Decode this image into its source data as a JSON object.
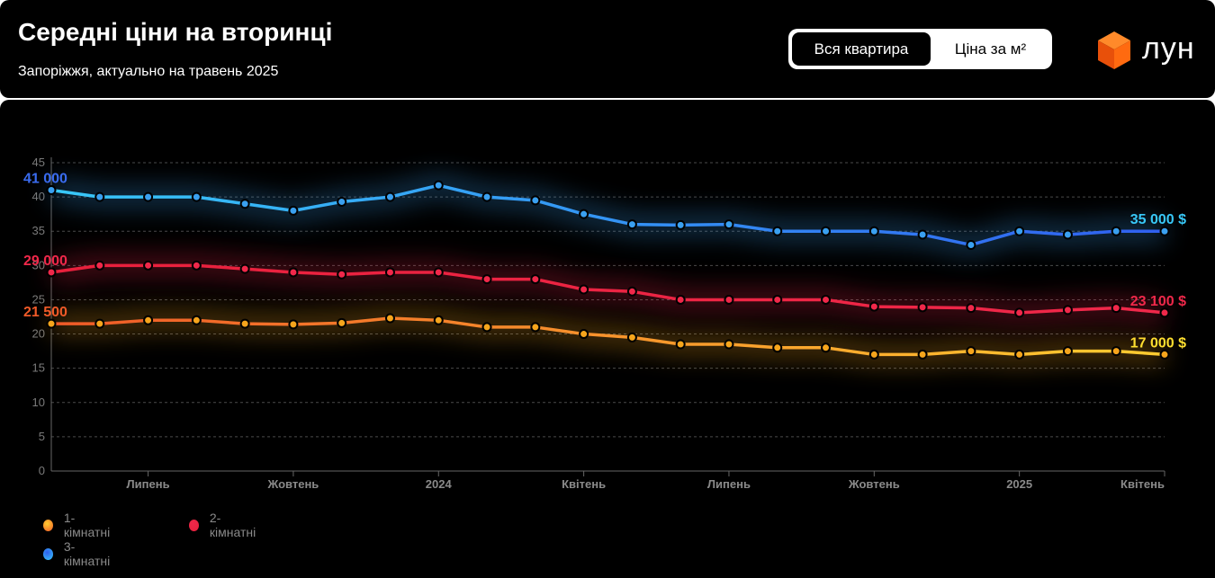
{
  "header": {
    "title": "Середні ціни на вторинці",
    "subtitle": "Запоріжжя, актуально на травень 2025",
    "toggle": {
      "active": "Вся квартира",
      "inactive": "Ціна за м²"
    },
    "logo_text": "лун"
  },
  "colors": {
    "background": "#000000",
    "one_room": "#f6a51c",
    "two_room": "#f0284a",
    "three_room": "#3aa0f0",
    "logo": "#ff6a10"
  },
  "chart_data": {
    "type": "line",
    "y_ticks": [
      "0",
      "5",
      "10",
      "15",
      "20",
      "25",
      "30",
      "35",
      "40",
      "45"
    ],
    "ylim": [
      0,
      45
    ],
    "x_tick_labels": [
      {
        "i": 2,
        "label": "Липень"
      },
      {
        "i": 5,
        "label": "Жовтень"
      },
      {
        "i": 8,
        "label": "2024"
      },
      {
        "i": 11,
        "label": "Квітень"
      },
      {
        "i": 14,
        "label": "Липень"
      },
      {
        "i": 17,
        "label": "Жовтень"
      },
      {
        "i": 20,
        "label": "2025"
      },
      {
        "i": 23,
        "label": "Квітень"
      }
    ],
    "grid": true,
    "legend_position": "bottom-left",
    "series": [
      {
        "name": "1-кімнатні",
        "key": "one_room",
        "start_label": "21 500",
        "end_label": "17 000 $",
        "values": [
          21.5,
          21.5,
          22,
          22,
          21.5,
          21.4,
          21.6,
          22.3,
          22,
          21,
          21,
          20,
          19.5,
          18.5,
          18.5,
          18,
          18,
          17,
          17,
          17.5,
          17,
          17.5,
          17.5,
          17
        ]
      },
      {
        "name": "2-кімнатні",
        "key": "two_room",
        "start_label": "29 000",
        "end_label": "23 100 $",
        "values": [
          29,
          30,
          30,
          30,
          29.5,
          29,
          28.7,
          29,
          29,
          28,
          28,
          26.5,
          26.2,
          25,
          25,
          25,
          25,
          24,
          23.9,
          23.8,
          23.1,
          23.5,
          23.8,
          23.1
        ]
      },
      {
        "name": "3-кімнатні",
        "key": "three_room",
        "start_label": "41 000",
        "end_label": "35 000 $",
        "values": [
          41,
          40,
          40,
          40,
          39,
          38,
          39.3,
          40,
          41.7,
          40,
          39.5,
          37.5,
          36,
          35.9,
          36,
          35,
          35,
          35,
          34.5,
          33,
          35,
          34.5,
          35,
          35
        ]
      }
    ]
  }
}
